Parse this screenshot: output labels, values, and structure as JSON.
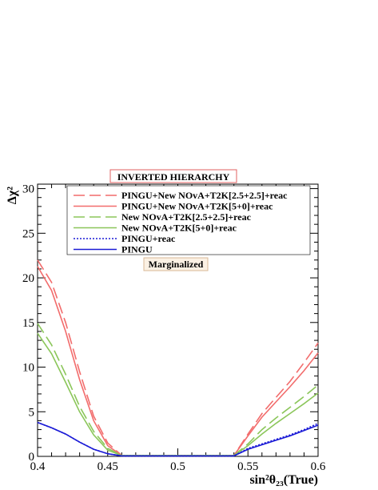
{
  "chart_data": {
    "type": "line",
    "title": "INVERTED HIERARCHY",
    "annotation": "Marginalized",
    "xlabel": "sin²θ₂₃(True)",
    "ylabel": "Δχ²",
    "xlim": [
      0.4,
      0.6
    ],
    "ylim": [
      0,
      30.5
    ],
    "x_ticks": [
      "0.4",
      "0.45",
      "0.5",
      "0.55",
      "0.6"
    ],
    "y_ticks": [
      "0",
      "5",
      "10",
      "15",
      "20",
      "25",
      "30"
    ],
    "legend_position": "top-right",
    "grid": false,
    "series": [
      {
        "name": "PINGU+New NOvA+T2K[2.5+2.5]+reac",
        "color": "#f26c6c",
        "style": "dashed",
        "points": [
          [
            0.4,
            22.0
          ],
          [
            0.41,
            19.5
          ],
          [
            0.42,
            15.0
          ],
          [
            0.43,
            9.5
          ],
          [
            0.44,
            4.5
          ],
          [
            0.45,
            1.5
          ],
          [
            0.46,
            0.1
          ],
          [
            0.54,
            0.1
          ],
          [
            0.55,
            2.5
          ],
          [
            0.56,
            4.8
          ],
          [
            0.57,
            6.6
          ],
          [
            0.58,
            8.4
          ],
          [
            0.59,
            10.5
          ],
          [
            0.6,
            12.7
          ]
        ]
      },
      {
        "name": "PINGU+New NOvA+T2K[5+0]+reac",
        "color": "#f26c6c",
        "style": "solid",
        "points": [
          [
            0.4,
            21.3
          ],
          [
            0.41,
            18.6
          ],
          [
            0.42,
            14.0
          ],
          [
            0.43,
            8.6
          ],
          [
            0.44,
            4.0
          ],
          [
            0.45,
            1.2
          ],
          [
            0.46,
            0.1
          ],
          [
            0.54,
            0.1
          ],
          [
            0.55,
            2.3
          ],
          [
            0.56,
            4.4
          ],
          [
            0.57,
            6.1
          ],
          [
            0.58,
            7.8
          ],
          [
            0.59,
            9.6
          ],
          [
            0.6,
            11.6
          ]
        ]
      },
      {
        "name": "New NOvA+T2K[2.5+2.5]+reac",
        "color": "#8bc65a",
        "style": "dashed",
        "points": [
          [
            0.4,
            14.9
          ],
          [
            0.41,
            12.5
          ],
          [
            0.42,
            9.2
          ],
          [
            0.43,
            5.6
          ],
          [
            0.44,
            2.8
          ],
          [
            0.45,
            0.9
          ],
          [
            0.46,
            0.1
          ],
          [
            0.54,
            0.1
          ],
          [
            0.55,
            1.4
          ],
          [
            0.56,
            3.0
          ],
          [
            0.57,
            4.3
          ],
          [
            0.58,
            5.5
          ],
          [
            0.59,
            6.7
          ],
          [
            0.6,
            8.0
          ]
        ]
      },
      {
        "name": "New NOvA+T2K[5+0]+reac",
        "color": "#8bc65a",
        "style": "solid",
        "points": [
          [
            0.4,
            13.8
          ],
          [
            0.41,
            11.5
          ],
          [
            0.42,
            8.3
          ],
          [
            0.43,
            5.0
          ],
          [
            0.44,
            2.4
          ],
          [
            0.45,
            0.7
          ],
          [
            0.46,
            0.1
          ],
          [
            0.54,
            0.1
          ],
          [
            0.55,
            1.2
          ],
          [
            0.56,
            2.5
          ],
          [
            0.57,
            3.7
          ],
          [
            0.58,
            4.8
          ],
          [
            0.59,
            5.9
          ],
          [
            0.6,
            7.1
          ]
        ]
      },
      {
        "name": "PINGU+reac",
        "color": "#1a1ad6",
        "style": "dotted",
        "points": [
          [
            0.4,
            3.8
          ],
          [
            0.41,
            3.2
          ],
          [
            0.42,
            2.5
          ],
          [
            0.43,
            1.6
          ],
          [
            0.44,
            0.8
          ],
          [
            0.45,
            0.3
          ],
          [
            0.46,
            0.05
          ],
          [
            0.54,
            0.05
          ],
          [
            0.55,
            0.9
          ],
          [
            0.56,
            1.4
          ],
          [
            0.57,
            1.9
          ],
          [
            0.58,
            2.4
          ],
          [
            0.59,
            3.0
          ],
          [
            0.6,
            3.7
          ]
        ]
      },
      {
        "name": "PINGU",
        "color": "#1a1ad6",
        "style": "solid",
        "points": [
          [
            0.4,
            3.8
          ],
          [
            0.41,
            3.2
          ],
          [
            0.42,
            2.5
          ],
          [
            0.43,
            1.6
          ],
          [
            0.44,
            0.8
          ],
          [
            0.45,
            0.3
          ],
          [
            0.46,
            0.05
          ],
          [
            0.54,
            0.05
          ],
          [
            0.55,
            0.8
          ],
          [
            0.56,
            1.3
          ],
          [
            0.57,
            1.8
          ],
          [
            0.58,
            2.3
          ],
          [
            0.59,
            2.9
          ],
          [
            0.6,
            3.5
          ]
        ]
      }
    ]
  }
}
